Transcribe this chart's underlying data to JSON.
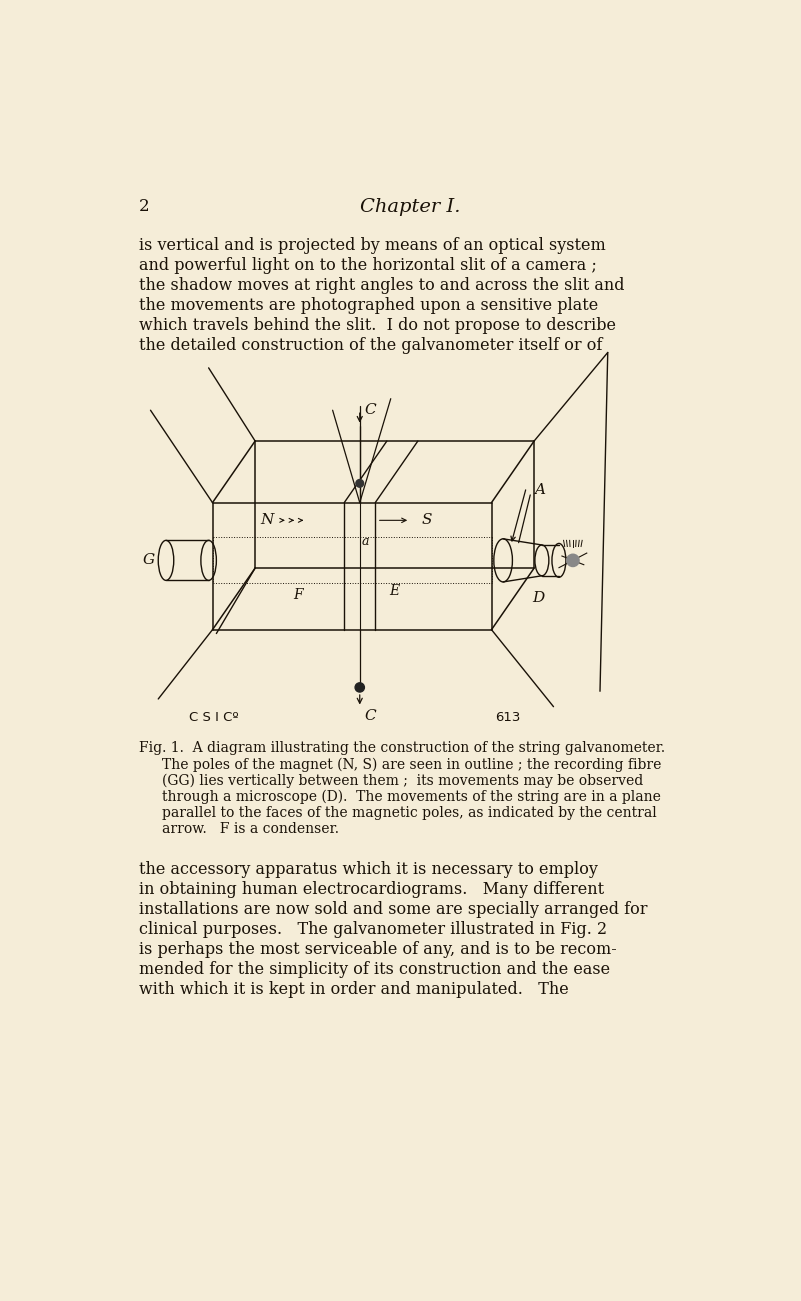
{
  "background_color": "#f5edd8",
  "page_number": "2",
  "chapter_title": "Chapter I.",
  "top_text_lines": [
    "is vertical and is projected by means of an optical system",
    "and powerful light on to the horizontal slit of a camera ;",
    "the shadow moves at right angles to and across the slit and",
    "the movements are photographed upon a sensitive plate",
    "which travels behind the slit.  I do not propose to describe",
    "the detailed construction of the galvanometer itself or of"
  ],
  "figure_caption_line1": "Fig. 1.  A diagram illustrating the construction of the string galvanometer.",
  "figure_caption_rest": [
    "The poles of the magnet (N, S) are seen in outline ; the recording fibre",
    "(GG) lies vertically between them ;  its movements may be observed",
    "through a microscope (D).  The movements of the string are in a plane",
    "parallel to the faces of the magnetic poles, as indicated by the central",
    "arrow.   F is a condenser."
  ],
  "bottom_text_lines": [
    "the accessory apparatus which it is necessary to employ",
    "in obtaining human electrocardiograms.   Many different",
    "installations are now sold and some are specially arranged for",
    "clinical purposes.   The galvanometer illustrated in Fig. 2",
    "is perhaps the most serviceable of any, and is to be recom-",
    "mended for the simplicity of its construction and the ease",
    "with which it is kept in order and manipulated.   The"
  ],
  "label_csico": "C S I Cº",
  "label_613": "613",
  "ink_color": "#1a1208",
  "text_color": "#1a1208"
}
